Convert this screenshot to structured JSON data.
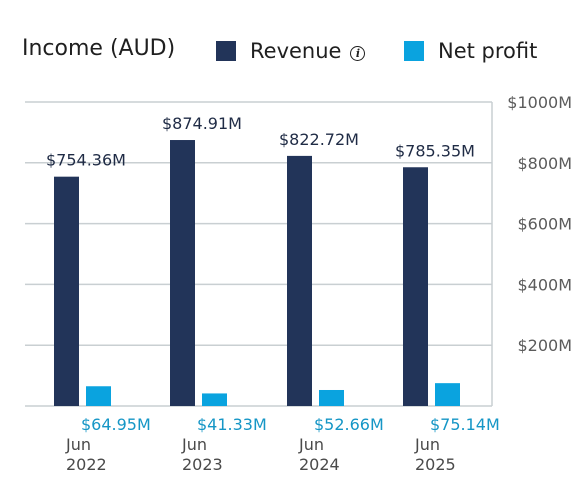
{
  "header": {
    "title": "Income (AUD)",
    "revenue_label": "Revenue",
    "net_profit_label": "Net profit",
    "info_icon": "info-icon"
  },
  "colors": {
    "revenue": "#223459",
    "net_profit": "#0aa3df",
    "net_profit_label": "#1596c6",
    "grid": "#c9cfd2",
    "axis_text": "#5b5b5b",
    "category_text": "#4a4a4a"
  },
  "chart_data": {
    "type": "bar",
    "title": "Income (AUD)",
    "categories": [
      [
        "Jun",
        "2022"
      ],
      [
        "Jun",
        "2023"
      ],
      [
        "Jun",
        "2024"
      ],
      [
        "Jun",
        "2025"
      ]
    ],
    "series": [
      {
        "name": "Revenue",
        "values": [
          754.36,
          874.91,
          822.72,
          785.35
        ],
        "labels": [
          "$754.36M",
          "$874.91M",
          "$822.72M",
          "$785.35M"
        ]
      },
      {
        "name": "Net profit",
        "values": [
          64.95,
          41.33,
          52.66,
          75.14
        ],
        "labels": [
          "$64.95M",
          "$41.33M",
          "$52.66M",
          "$75.14M"
        ]
      }
    ],
    "ylim": [
      0,
      1000
    ],
    "yticks": [
      200,
      400,
      600,
      800,
      1000
    ],
    "ytick_labels": [
      "$200M",
      "$400M",
      "$600M",
      "$800M",
      "$1000M"
    ],
    "y_axis_side": "right",
    "grid": true,
    "legend_position": "top"
  }
}
